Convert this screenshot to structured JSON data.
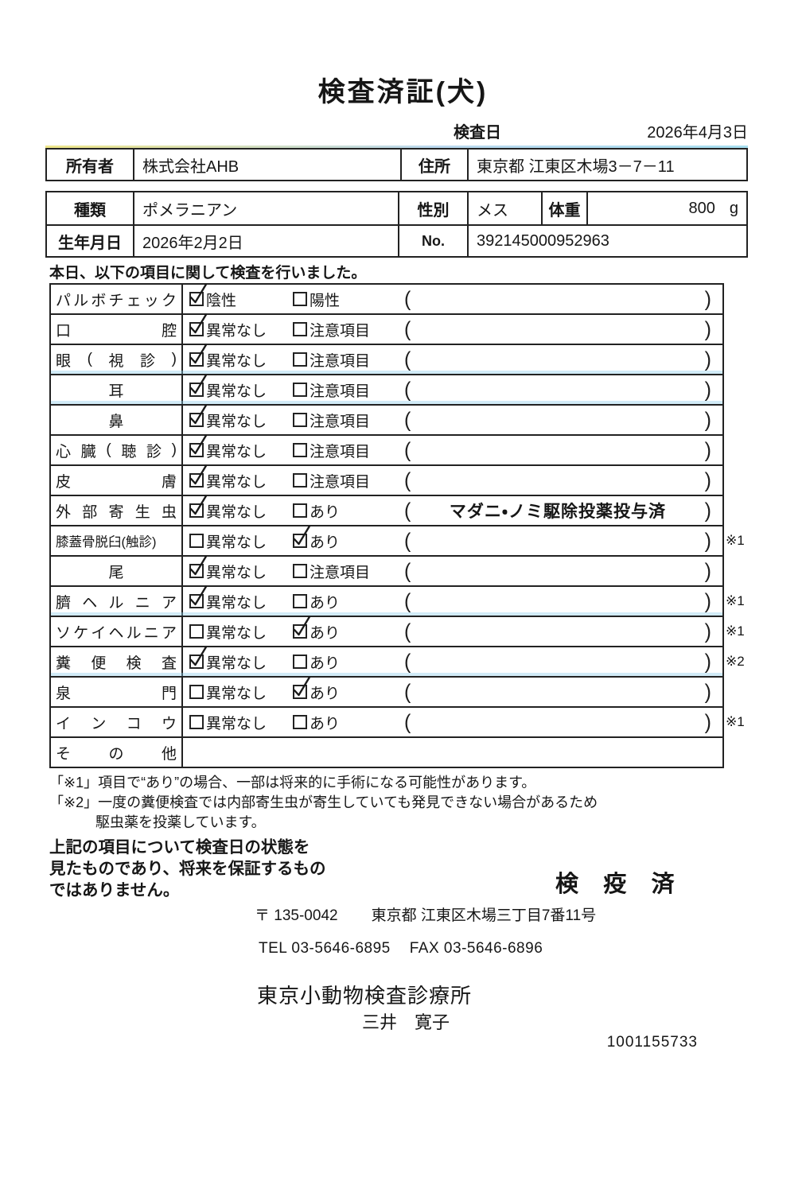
{
  "title": "検査済証(犬)",
  "inspection_date": {
    "label": "検査日",
    "value": "2026年4月3日"
  },
  "owner": {
    "label": "所有者",
    "value": "株式会社AHB",
    "address_label": "住所",
    "address": "東京都 江東区木場3－7－11"
  },
  "pet": {
    "breed_label": "種類",
    "breed": "ポメラニアン",
    "sex_label": "性別",
    "sex": "メス",
    "weight_label": "体重",
    "weight": "800",
    "weight_unit": "g",
    "birth_label": "生年月日",
    "birth": "2026年2月2日",
    "no_label": "No.",
    "no": "392145000952963"
  },
  "intro": "本日、以下の項目に関して検査を行いました。",
  "checklist": {
    "rows": [
      {
        "item": "パルボチェック",
        "style": "justify",
        "o1": "陰性",
        "c1": true,
        "o2": "陽性",
        "c2": false,
        "note": "",
        "mark": ""
      },
      {
        "item": "口腔",
        "style": "justify",
        "o1": "異常なし",
        "c1": true,
        "o2": "注意項目",
        "c2": false,
        "note": "",
        "mark": ""
      },
      {
        "item": "眼(視診)",
        "style": "justify",
        "o1": "異常なし",
        "c1": true,
        "o2": "注意項目",
        "c2": false,
        "note": "",
        "mark": ""
      },
      {
        "item": "耳",
        "style": "center",
        "o1": "異常なし",
        "c1": true,
        "o2": "注意項目",
        "c2": false,
        "note": "",
        "mark": ""
      },
      {
        "item": "鼻",
        "style": "center",
        "o1": "異常なし",
        "c1": true,
        "o2": "注意項目",
        "c2": false,
        "note": "",
        "mark": ""
      },
      {
        "item": "心臓(聴診)",
        "style": "justify",
        "o1": "異常なし",
        "c1": true,
        "o2": "注意項目",
        "c2": false,
        "note": "",
        "mark": ""
      },
      {
        "item": "皮膚",
        "style": "justify",
        "o1": "異常なし",
        "c1": true,
        "o2": "注意項目",
        "c2": false,
        "note": "",
        "mark": ""
      },
      {
        "item": "外部寄生虫",
        "style": "justify",
        "o1": "異常なし",
        "c1": true,
        "o2": "あり",
        "c2": false,
        "note": "マダニ・ノミ駆除投薬投与済",
        "mark": ""
      },
      {
        "item": "膝蓋骨脱臼(触診)",
        "style": "plain",
        "o1": "異常なし",
        "c1": false,
        "o2": "あり",
        "c2": true,
        "note": "",
        "mark": "※1"
      },
      {
        "item": "尾",
        "style": "center",
        "o1": "異常なし",
        "c1": true,
        "o2": "注意項目",
        "c2": false,
        "note": "",
        "mark": ""
      },
      {
        "item": "臍ヘルニア",
        "style": "justify",
        "o1": "異常なし",
        "c1": true,
        "o2": "あり",
        "c2": false,
        "note": "",
        "mark": "※1"
      },
      {
        "item": "ソケイヘルニア",
        "style": "justify",
        "o1": "異常なし",
        "c1": false,
        "o2": "あり",
        "c2": true,
        "note": "",
        "mark": "※1"
      },
      {
        "item": "糞便検査",
        "style": "justify",
        "o1": "異常なし",
        "c1": true,
        "o2": "あり",
        "c2": false,
        "note": "",
        "mark": "※2"
      },
      {
        "item": "泉門",
        "style": "justify",
        "o1": "異常なし",
        "c1": false,
        "o2": "あり",
        "c2": true,
        "note": "",
        "mark": ""
      },
      {
        "item": "インコウ",
        "style": "justify",
        "o1": "異常なし",
        "c1": false,
        "o2": "あり",
        "c2": false,
        "note": "",
        "mark": "※1"
      },
      {
        "item": "その他",
        "style": "justify",
        "no_options": true,
        "note": "",
        "mark": ""
      }
    ]
  },
  "footnotes": {
    "note1": "「※1」項目で“あり”の場合、一部は将来的に手術になる可能性があります。",
    "note2_line1": "「※2」一度の糞便検査では内部寄生虫が寄生していても発見できない場合があるため",
    "note2_line2": "駆虫薬を投薬しています。"
  },
  "disclaimer": {
    "line1": "上記の項目について検査日の状態を",
    "line2": "見たものであり、将来を保証するもの",
    "line3": "ではありません。"
  },
  "stamp": "検 疫 済",
  "clinic": {
    "postal": "〒 135-0042",
    "address": "東京都 江東区木場三丁目7番11号",
    "tel": "TEL 03-5646-6895",
    "fax": "FAX 03-5646-6896",
    "name": "東京小動物検査診療所",
    "vet": "三井　寛子"
  },
  "serial": "1001155733"
}
